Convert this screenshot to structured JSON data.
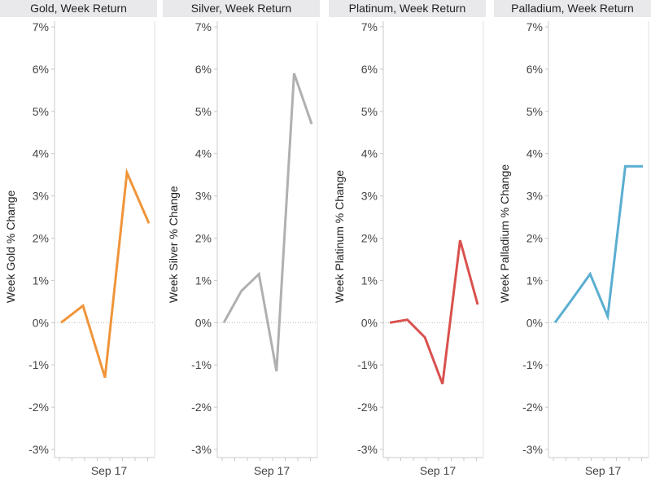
{
  "chart_data": [
    {
      "type": "line",
      "title": "Gold, Week Return",
      "ylabel": "Week Gold % Change",
      "x_tick_label": "Sep 17",
      "y_ticks": [
        "7%",
        "6%",
        "5%",
        "4%",
        "3%",
        "2%",
        "1%",
        "0%",
        "-1%",
        "-2%",
        "-3%"
      ],
      "ylim": [
        -3,
        7
      ],
      "color": "#f0953a",
      "values": [
        0.0,
        0.4,
        -1.3,
        3.55,
        2.35
      ]
    },
    {
      "type": "line",
      "title": "Silver, Week Return",
      "ylabel": "Week Silver % Change",
      "x_tick_label": "Sep 17",
      "y_ticks": [
        "7%",
        "6%",
        "5%",
        "4%",
        "3%",
        "2%",
        "1%",
        "0%",
        "-1%",
        "-2%",
        "-3%"
      ],
      "ylim": [
        -3,
        7
      ],
      "color": "#b0b0b0",
      "values": [
        0.0,
        0.75,
        1.15,
        -1.15,
        5.9,
        4.7
      ]
    },
    {
      "type": "line",
      "title": "Platinum, Week Return",
      "ylabel": "Week Platinum % Change",
      "x_tick_label": "Sep 17",
      "y_ticks": [
        "7%",
        "6%",
        "5%",
        "4%",
        "3%",
        "2%",
        "1%",
        "0%",
        "-1%",
        "-2%",
        "-3%"
      ],
      "ylim": [
        -3,
        7
      ],
      "color": "#d9514e",
      "values": [
        0.0,
        0.07,
        -0.35,
        -1.45,
        1.95,
        0.43
      ]
    },
    {
      "type": "line",
      "title": "Palladium, Week Return",
      "ylabel": "Week Palladium % Change",
      "x_tick_label": "Sep 17",
      "y_ticks": [
        "7%",
        "6%",
        "5%",
        "4%",
        "3%",
        "2%",
        "1%",
        "0%",
        "-1%",
        "-2%",
        "-3%"
      ],
      "ylim": [
        -3,
        7
      ],
      "color": "#5aaed1",
      "values": [
        0.0,
        0.57,
        1.15,
        0.15,
        3.7,
        3.7
      ]
    }
  ]
}
